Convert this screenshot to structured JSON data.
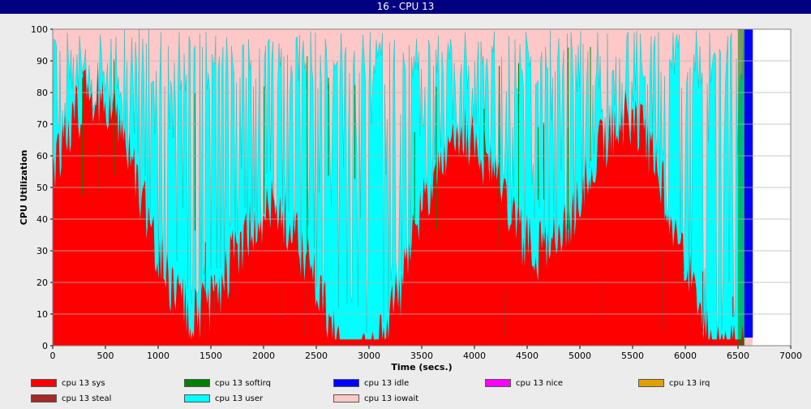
{
  "window": {
    "title": "16 - CPU 13"
  },
  "chart_data": {
    "type": "area",
    "xlabel": "Time (secs.)",
    "ylabel": "CPU Utilization",
    "xlim": [
      0,
      7000
    ],
    "ylim": [
      0,
      100
    ],
    "xticks": [
      "0",
      "500",
      "1000",
      "1500",
      "2000",
      "2500",
      "3000",
      "3500",
      "4000",
      "4500",
      "5000",
      "5500",
      "6000",
      "6500",
      "7000"
    ],
    "yticks": [
      "0",
      "10",
      "20",
      "30",
      "40",
      "50",
      "60",
      "70",
      "80",
      "90",
      "100"
    ],
    "grid": true,
    "legend_placement": "bottom",
    "series": [
      {
        "name": "cpu 13 sys",
        "color": "#ff0000"
      },
      {
        "name": "cpu 13 softirq",
        "color": "#008000"
      },
      {
        "name": "cpu 13 idle",
        "color": "#0000ff"
      },
      {
        "name": "cpu 13 nice",
        "color": "#ff00ff"
      },
      {
        "name": "cpu 13 irq",
        "color": "#e0a000"
      },
      {
        "name": "cpu 13 steal",
        "color": "#a52a2a"
      },
      {
        "name": "cpu 13 user",
        "color": "#00ffff"
      },
      {
        "name": "cpu 13 iowait",
        "color": "#ffc8c8"
      }
    ],
    "data_end_x": 6640,
    "idle_start_x": 6560
  }
}
